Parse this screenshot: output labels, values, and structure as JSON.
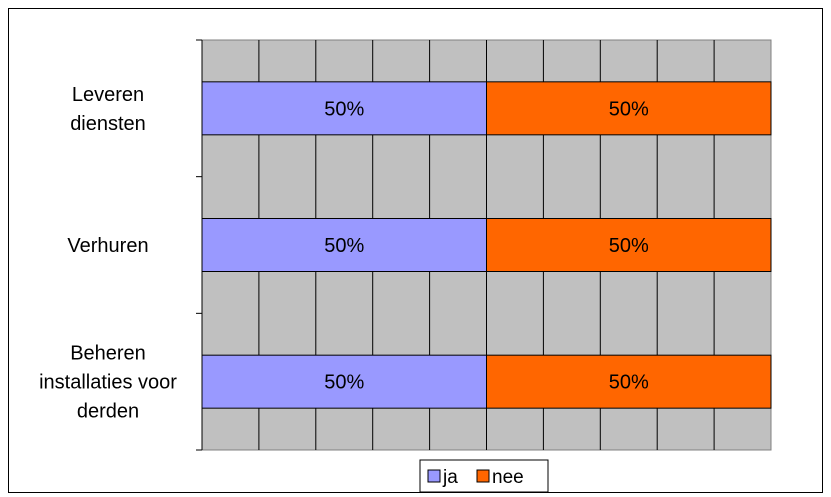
{
  "chart_data": {
    "type": "bar",
    "orientation": "horizontal",
    "stacked": "percent",
    "categories": [
      "Leveren diensten",
      "Verhuren",
      "Beheren installaties voor derden"
    ],
    "category_lines": [
      [
        "Leveren",
        "diensten"
      ],
      [
        "Verhuren"
      ],
      [
        "Beheren",
        "installaties voor",
        "derden"
      ]
    ],
    "series": [
      {
        "name": "ja",
        "values": [
          50,
          50,
          50
        ],
        "labels": [
          "50%",
          "50%",
          "50%"
        ],
        "color": "#9999ff"
      },
      {
        "name": "nee",
        "values": [
          50,
          50,
          50
        ],
        "labels": [
          "50%",
          "50%",
          "50%"
        ],
        "color": "#ff6600"
      }
    ],
    "xlim": [
      0,
      100
    ],
    "grid": true,
    "plot_background": "#c0c0c0",
    "legend_position": "bottom"
  }
}
